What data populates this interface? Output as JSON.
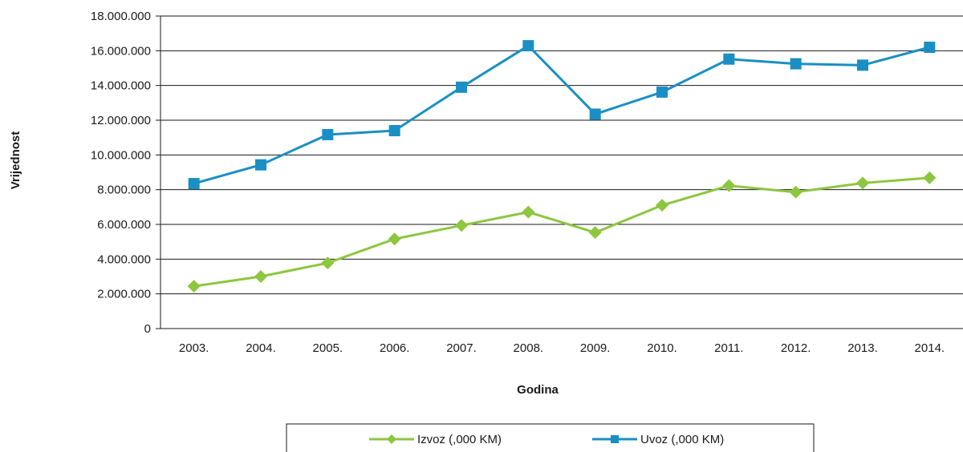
{
  "chart_data": {
    "type": "line",
    "xlabel": "Godina",
    "ylabel": "Vrijednost",
    "categories": [
      "2003.",
      "2004.",
      "2005.",
      "2006.",
      "2007.",
      "2008.",
      "2009.",
      "2010.",
      "2011.",
      "2012.",
      "2013.",
      "2014."
    ],
    "ylim": [
      0,
      18000000
    ],
    "yticks": [
      0,
      2000000,
      4000000,
      6000000,
      8000000,
      10000000,
      12000000,
      14000000,
      16000000,
      18000000
    ],
    "ytick_labels": [
      "0",
      "2.000.000",
      "4.000.000",
      "6.000.000",
      "8.000.000",
      "10.000.000",
      "12.000.000",
      "14.000.000",
      "16.000.000",
      "18.000.000"
    ],
    "grid": "horizontal",
    "legend_position": "bottom",
    "series": [
      {
        "name": "Izvoz (,000 KM)",
        "color": "#8dc63f",
        "marker": "diamond",
        "values": [
          2440000,
          3000000,
          3780000,
          5160000,
          5940000,
          6710000,
          5530000,
          7100000,
          8230000,
          7860000,
          8380000,
          8680000
        ]
      },
      {
        "name": "Uvoz (,000 KM)",
        "color": "#1a8fc4",
        "marker": "square",
        "values": [
          8350000,
          9430000,
          11170000,
          11400000,
          13900000,
          16290000,
          12350000,
          13620000,
          15520000,
          15250000,
          15170000,
          16200000
        ]
      }
    ]
  }
}
